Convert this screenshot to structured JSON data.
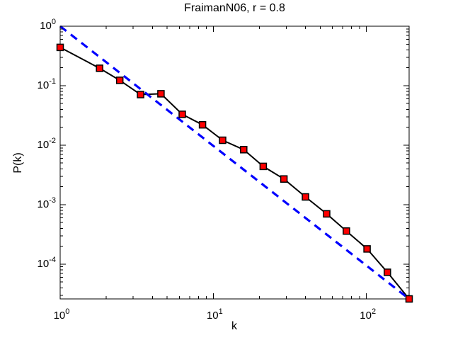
{
  "figure": {
    "title": "FraimanN06, r = 0.8",
    "xlabel": "k",
    "ylabel": "P(k)",
    "background_color": "#ffffff",
    "axes_color": "#000000"
  },
  "chart_data": {
    "type": "line",
    "title": "FraimanN06, r = 0.8",
    "xlabel": "k",
    "ylabel": "P(k)",
    "x_scale": "log",
    "y_scale": "log",
    "xlim": [
      1,
      190
    ],
    "ylim": [
      2.6e-05,
      1
    ],
    "grid": false,
    "legend": "none",
    "x_tick_labels": [
      "10^0",
      "10^1",
      "10^2"
    ],
    "y_tick_labels": [
      "10^0",
      "10^-1",
      "10^-2",
      "10^-3",
      "10^-4"
    ],
    "series": [
      {
        "name": "degree-distribution-data",
        "style": "solid line with square markers",
        "line_color": "#000000",
        "marker": "square",
        "marker_face_color": "#ff0000",
        "marker_edge_color": "#000000",
        "x": [
          1,
          1.81,
          2.45,
          3.35,
          4.55,
          6.27,
          8.5,
          11.5,
          15.8,
          21.2,
          28.9,
          40,
          55,
          74,
          101,
          137,
          190
        ],
        "y": [
          0.44,
          0.196,
          0.123,
          0.071,
          0.073,
          0.033,
          0.022,
          0.0121,
          0.0084,
          0.0044,
          0.0027,
          0.00135,
          0.0007,
          0.00036,
          0.00018,
          7.3e-05,
          2.6e-05
        ]
      },
      {
        "name": "power-law-guide-slope-minus-2",
        "style": "dashed line",
        "line_color": "#0000ff",
        "approx_slope": -2,
        "x": [
          1,
          190
        ],
        "y": [
          1,
          2.6e-05
        ]
      }
    ]
  }
}
